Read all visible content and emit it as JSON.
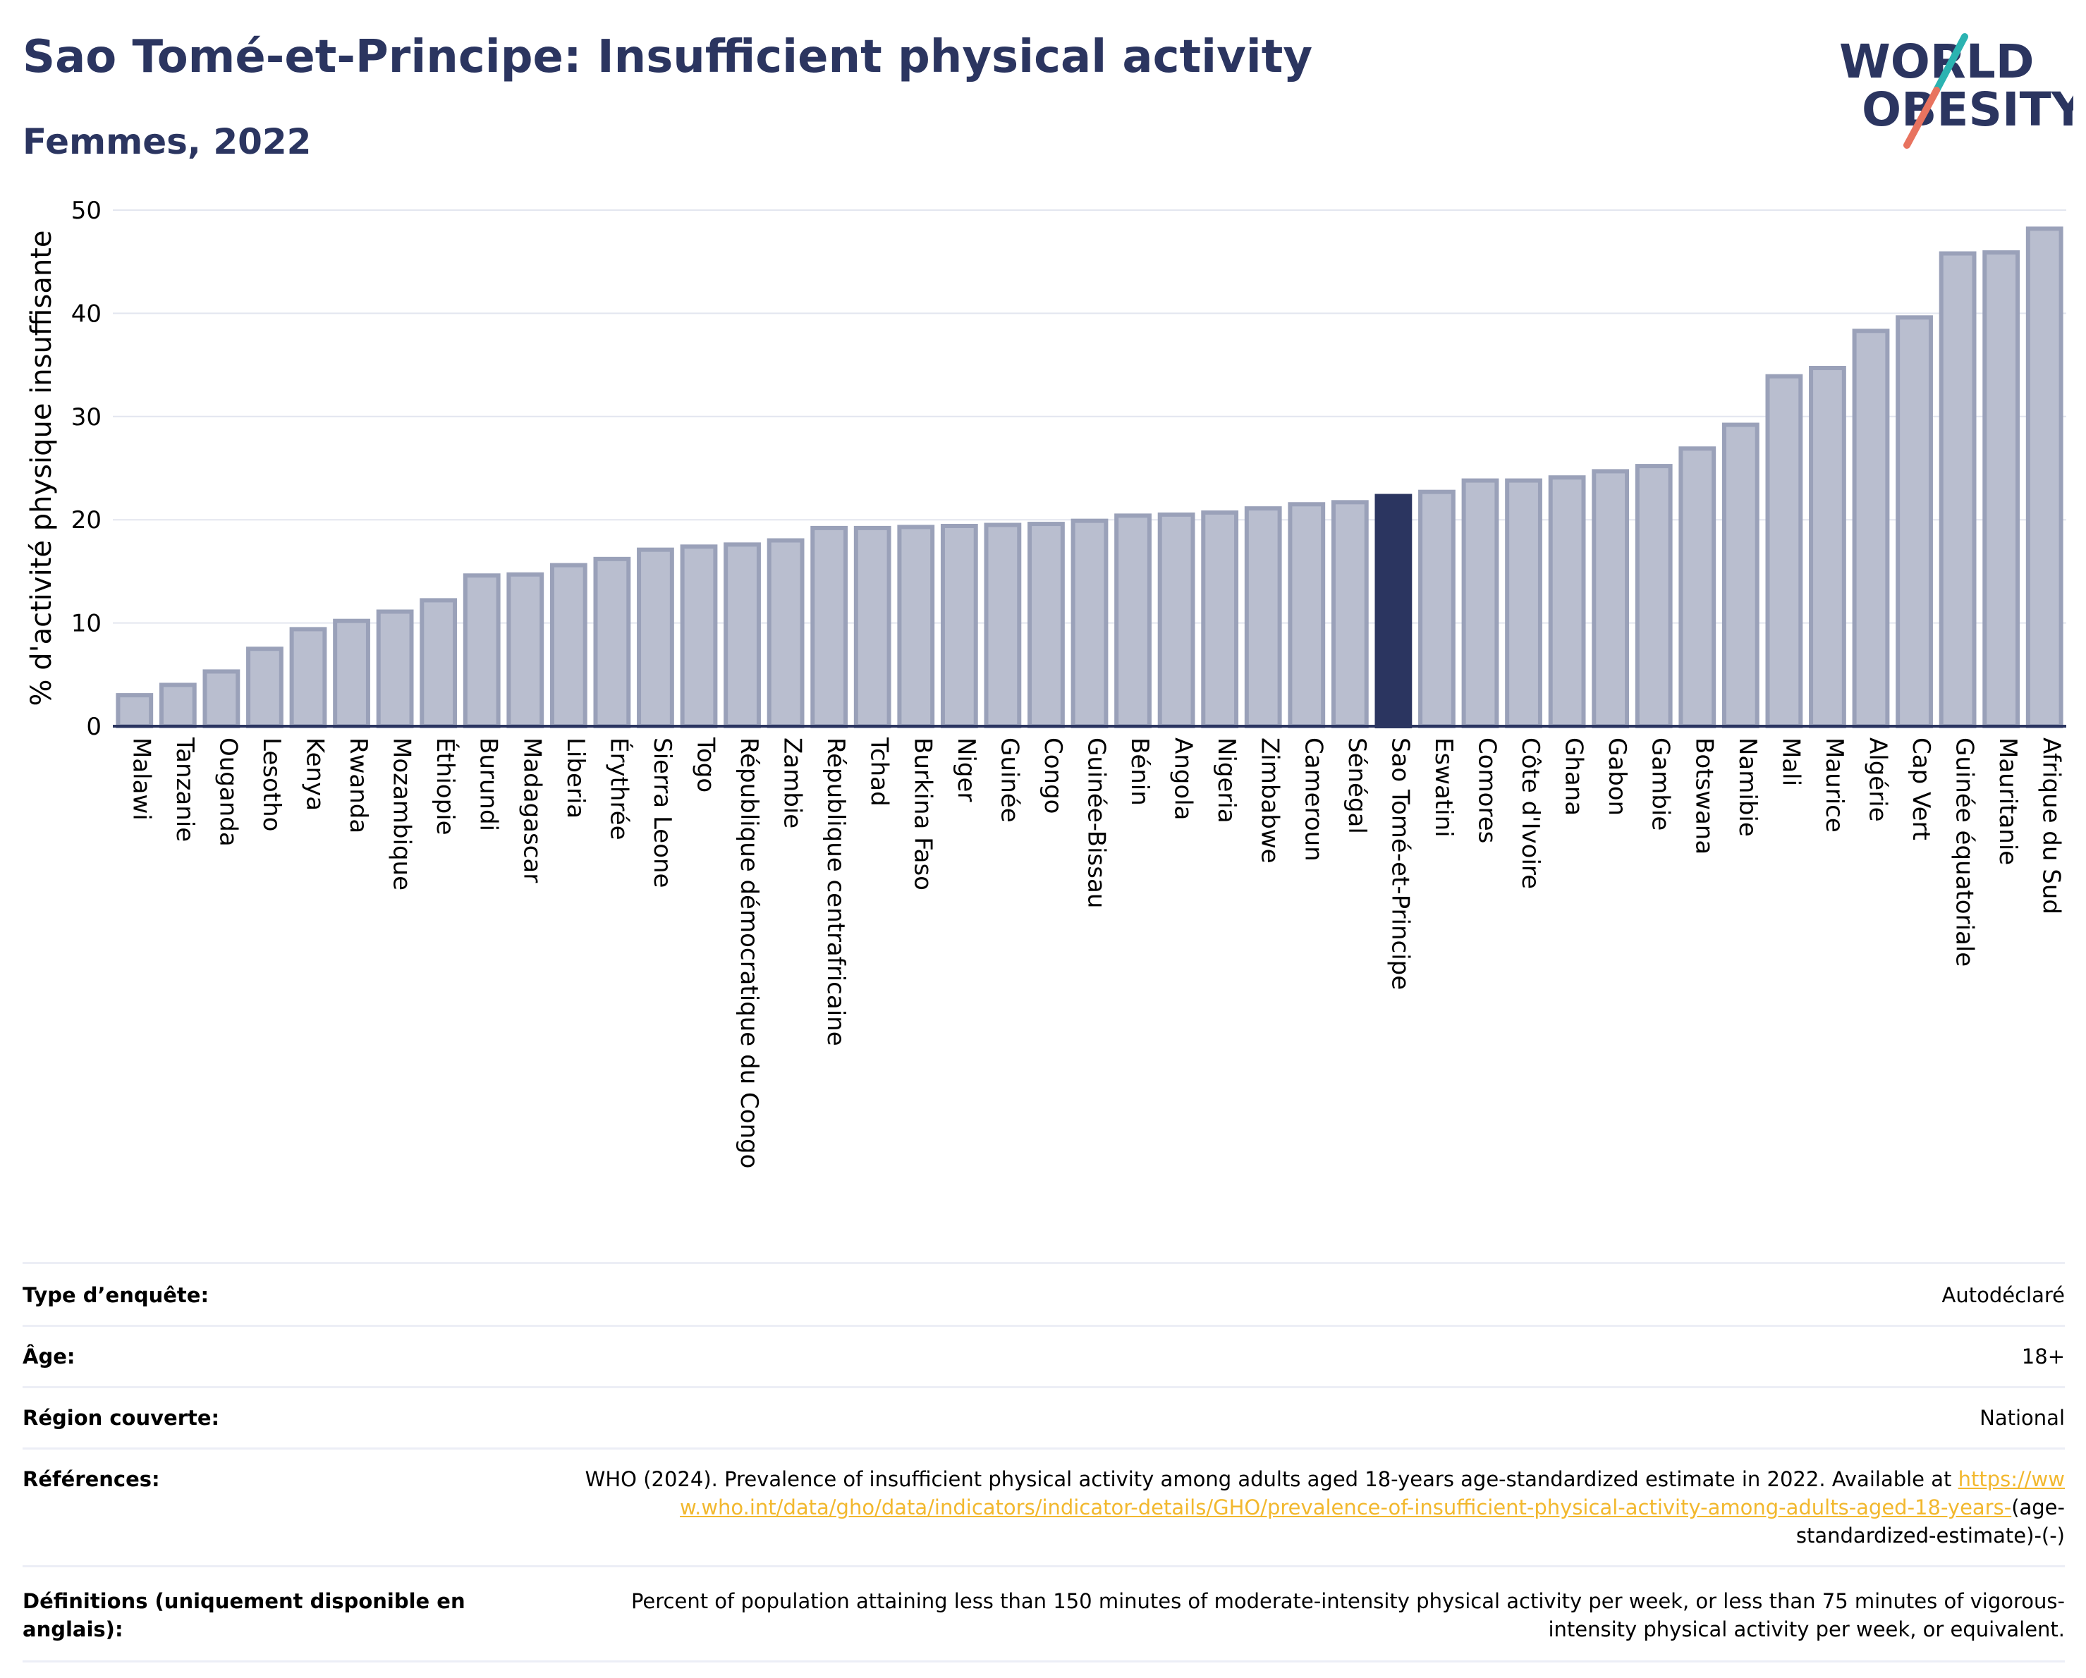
{
  "header": {
    "title": "Sao Tomé-et-Principe: Insufficient physical activity",
    "subtitle": "Femmes, 2022"
  },
  "logo": {
    "line1": "WORLD",
    "line2": "OBESITY",
    "accent_teal": "#2bb3b1",
    "accent_coral": "#e8735f"
  },
  "colors": {
    "bar": "#b9becf",
    "bar_stroke": "#9aa1b9",
    "highlight": "#2b3560",
    "grid": "#e3e6ef",
    "axis": "#2b3560"
  },
  "chart_data": {
    "type": "bar",
    "title": "Sao Tomé-et-Principe: Insufficient physical activity",
    "subtitle": "Femmes, 2022",
    "ylabel": "% d'activité physique insuffisante",
    "xlabel": "",
    "ylim": [
      0,
      50
    ],
    "yticks": [
      0,
      10,
      20,
      30,
      40,
      50
    ],
    "grid": true,
    "highlight": "Sao Tomé-et-Principe",
    "categories": [
      "Malawi",
      "Tanzanie",
      "Ouganda",
      "Lesotho",
      "Kenya",
      "Rwanda",
      "Mozambique",
      "Éthiopie",
      "Burundi",
      "Madagascar",
      "Liberia",
      "Érythrée",
      "Sierra Leone",
      "Togo",
      "République démocratique du Congo",
      "Zambie",
      "République centrafricaine",
      "Tchad",
      "Burkina Faso",
      "Niger",
      "Guinée",
      "Congo",
      "Guinée-Bissau",
      "Bénin",
      "Angola",
      "Nigeria",
      "Zimbabwe",
      "Cameroun",
      "Sénégal",
      "Sao Tomé-et-Principe",
      "Eswatini",
      "Comores",
      "Côte d'Ivoire",
      "Ghana",
      "Gabon",
      "Gambie",
      "Botswana",
      "Namibie",
      "Mali",
      "Maurice",
      "Algérie",
      "Cap Vert",
      "Guinée équatoriale",
      "Mauritanie",
      "Afrique du Sud"
    ],
    "values": [
      3.0,
      4.0,
      5.3,
      7.5,
      9.4,
      10.2,
      11.1,
      12.2,
      14.6,
      14.7,
      15.6,
      16.2,
      17.1,
      17.4,
      17.6,
      18.0,
      19.2,
      19.2,
      19.3,
      19.4,
      19.5,
      19.6,
      19.9,
      20.4,
      20.5,
      20.7,
      21.1,
      21.5,
      21.7,
      22.3,
      22.7,
      23.8,
      23.8,
      24.1,
      24.7,
      25.2,
      26.9,
      29.2,
      33.9,
      34.7,
      38.3,
      39.6,
      45.8,
      45.9,
      48.2
    ]
  },
  "meta": {
    "survey_type_label": "Type d’enquête:",
    "survey_type_value": "Autodéclaré",
    "age_label": "Âge:",
    "age_value": "18+",
    "region_label": "Région couverte:",
    "region_value": "National",
    "references_label": "Références:",
    "references_text": "WHO (2024). Prevalence of insufficient physical activity among adults aged 18-years age-standardized estimate in 2022. Available at",
    "references_link": "https://www.who.int/data/gho/data/indicators/indicator-details/GHO/prevalence-of-insufficient-physical-activity-among-adults-aged-18-years-",
    "references_suffix": "(age-standardized-estimate)-(-)",
    "definitions_label": "Définitions (uniquement disponible en anglais):",
    "definitions_text": "Percent of population attaining less than 150 minutes of moderate-intensity physical activity per week, or less than 75 minutes of vigorous-intensity physical activity per week, or equivalent."
  }
}
